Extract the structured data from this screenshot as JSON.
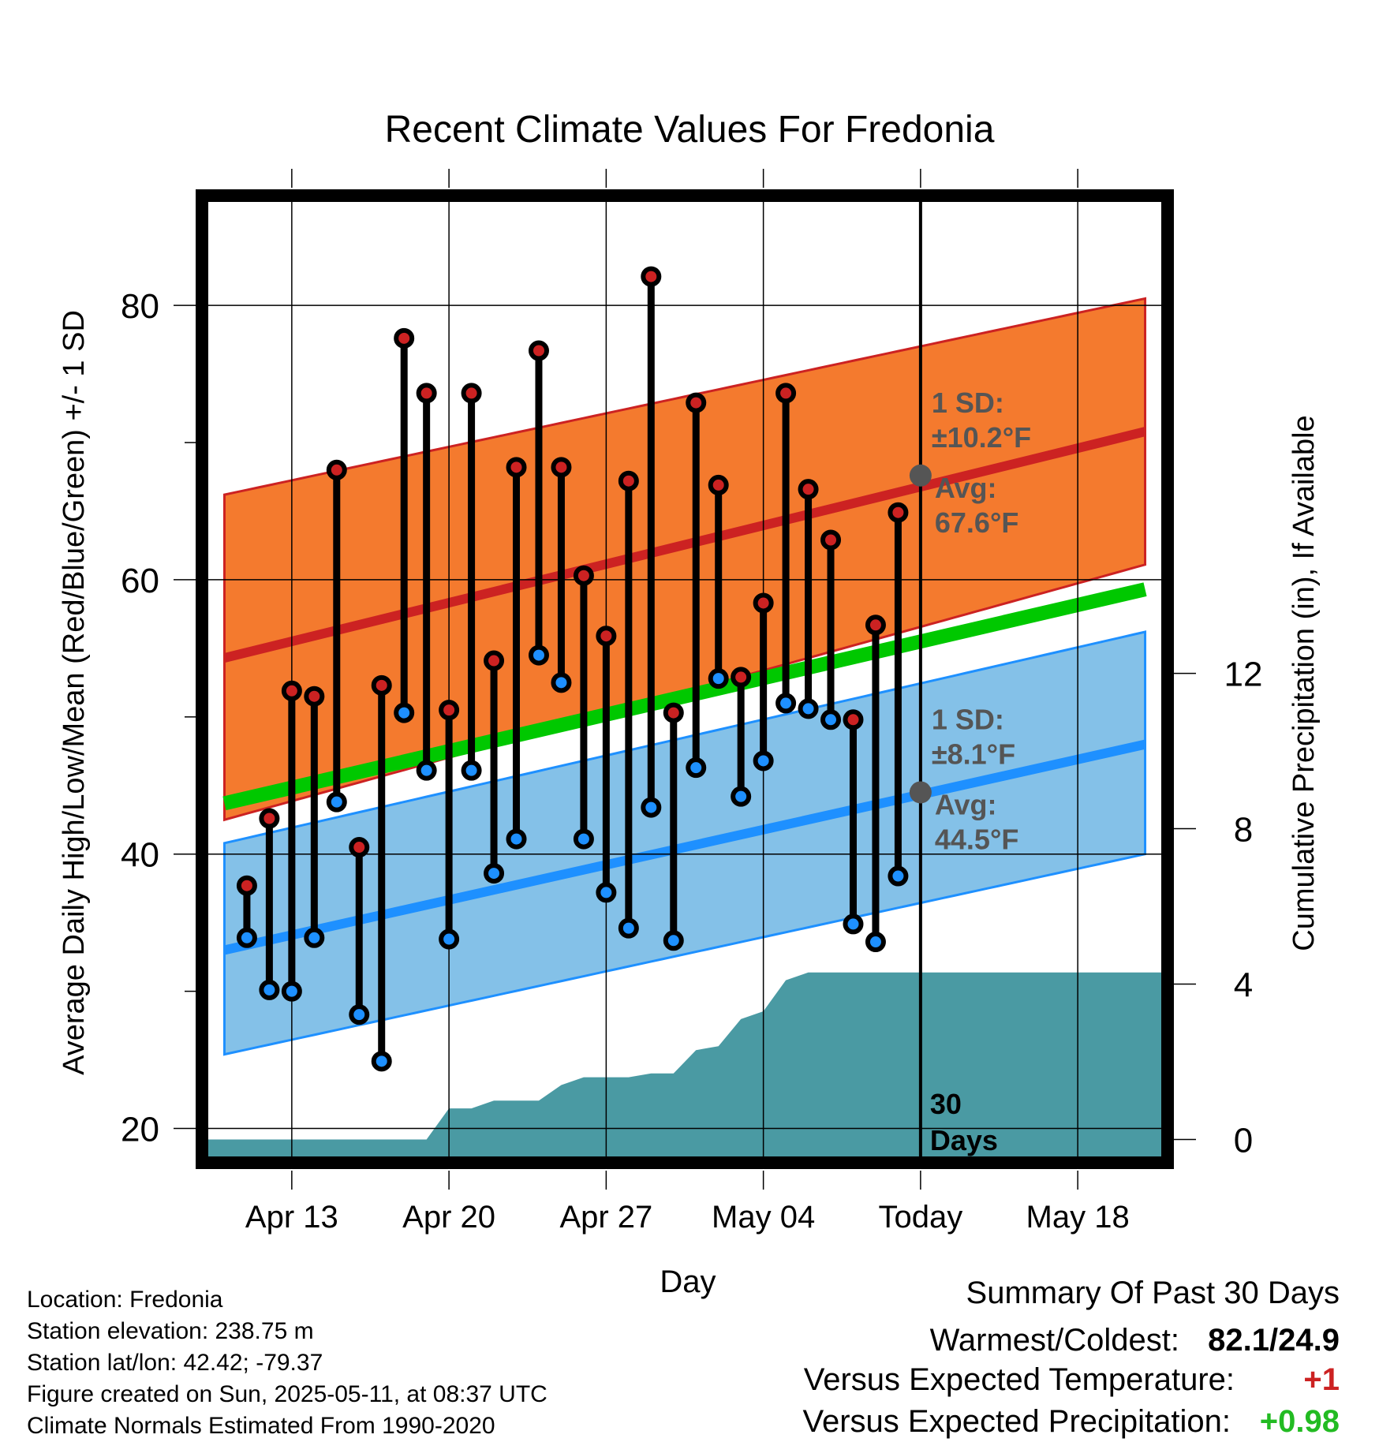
{
  "chart_data": {
    "type": "climate-range-plot",
    "title": "Recent Climate Values For Fredonia",
    "xlabel": "Day",
    "ylabel_left": "Average Daily High/Low/Mean (Red/Blue/Green) +/- 1 SD",
    "ylabel_right": "Cumulative Precipitation (in), If Available",
    "x_range_days": [
      -32,
      11
    ],
    "ylim_temp": [
      17.5,
      88
    ],
    "ylim_precip": [
      -0.6,
      24.3
    ],
    "x_ticks": [
      {
        "day": -28,
        "label": "Apr 13"
      },
      {
        "day": -21,
        "label": "Apr 20"
      },
      {
        "day": -14,
        "label": "Apr 27"
      },
      {
        "day": -7,
        "label": "May 04"
      },
      {
        "day": 0,
        "label": "Today"
      },
      {
        "day": 7,
        "label": "May 18"
      }
    ],
    "y_ticks_temp": [
      20,
      40,
      60,
      80
    ],
    "y_minor_ticks_temp": [
      30,
      50,
      70
    ],
    "y_ticks_precip": [
      0,
      4,
      8,
      12
    ],
    "high_normal": {
      "days": [
        -31,
        10
      ],
      "mean": [
        54.3,
        70.8
      ],
      "upper": [
        66.2,
        80.5
      ],
      "lower": [
        42.5,
        61.1
      ]
    },
    "low_normal": {
      "days": [
        -31,
        10
      ],
      "mean": [
        33.0,
        48.0
      ],
      "upper": [
        40.8,
        56.2
      ],
      "lower": [
        25.4,
        40.0
      ]
    },
    "mean_normal": {
      "days": [
        -31,
        10
      ],
      "values": [
        43.7,
        59.3
      ]
    },
    "daily": {
      "days": [
        -30,
        -29,
        -28,
        -27,
        -26,
        -25,
        -24,
        -23,
        -22,
        -21,
        -20,
        -19,
        -18,
        -17,
        -16,
        -15,
        -14,
        -13,
        -12,
        -11,
        -10,
        -9,
        -8,
        -7,
        -6,
        -5,
        -4,
        -3,
        -2,
        -1
      ],
      "highs": [
        37.7,
        42.6,
        51.9,
        51.5,
        68.0,
        40.5,
        52.3,
        77.6,
        73.6,
        50.5,
        73.6,
        54.1,
        68.2,
        76.7,
        68.2,
        60.3,
        55.9,
        67.2,
        82.1,
        50.3,
        72.9,
        66.9,
        52.9,
        58.3,
        73.6,
        66.6,
        62.9,
        49.8,
        56.7,
        64.9
      ],
      "lows": [
        33.9,
        30.1,
        30.0,
        33.9,
        43.8,
        28.3,
        24.9,
        50.3,
        46.1,
        33.8,
        46.1,
        38.6,
        41.1,
        54.5,
        52.5,
        41.1,
        37.2,
        34.6,
        43.4,
        33.7,
        46.3,
        52.8,
        44.2,
        46.8,
        51.0,
        50.6,
        49.8,
        34.9,
        33.6,
        38.4
      ]
    },
    "precip_cumulative": {
      "days": [
        -32,
        -30,
        -27,
        -26,
        -25,
        -24,
        -23,
        -22,
        -21,
        -20,
        -19,
        -18,
        -17,
        -16,
        -15,
        -14,
        -13,
        -12,
        -11,
        -10,
        -9,
        -8,
        -7,
        -6,
        -5,
        -4,
        0,
        11
      ],
      "values": [
        0,
        0,
        0,
        0,
        0,
        0,
        0,
        0,
        0.8,
        0.8,
        1.0,
        1.0,
        1.0,
        1.4,
        1.6,
        1.6,
        1.6,
        1.7,
        1.7,
        2.3,
        2.4,
        3.1,
        3.3,
        4.1,
        4.3,
        4.3,
        4.3,
        4.3
      ]
    },
    "today_marker": {
      "day": 0,
      "label_line1": "30",
      "label_line2": "Days"
    },
    "high_annotation": {
      "sd_label": "1 SD:",
      "sd_value": "±10.2°F",
      "avg_label": "Avg:",
      "avg_value": 67.6,
      "avg_text": "67.6°F"
    },
    "low_annotation": {
      "sd_label": "1 SD:",
      "sd_value": "±8.1°F",
      "avg_label": "Avg:",
      "avg_value": 44.5,
      "avg_text": "44.5°F"
    }
  },
  "colors": {
    "high_band": "#f47a2e",
    "high_mean": "#cc2222",
    "low_band": "#84c1e8",
    "low_mean": "#1e90ff",
    "mean_line": "#00c800",
    "precip_fill": "#4a9aa3",
    "high_dot": "#cc2222",
    "low_dot": "#1e90ff",
    "annotation": "#555555",
    "temp_anomaly": "#cc2222",
    "precip_anomaly": "#22bb22"
  },
  "info": {
    "location": "Location: Fredonia",
    "elevation": "Station elevation: 238.75 m",
    "latlon": "Station lat/lon: 42.42; -79.37",
    "created": "Figure created on Sun, 2025-05-11, at 08:37 UTC",
    "normals": "Climate Normals Estimated From 1990-2020"
  },
  "summary": {
    "title": "Summary Of Past 30 Days",
    "warm_cold_label": "Warmest/Coldest:",
    "warm_cold_value": "82.1/24.9",
    "temp_label": "Versus Expected Temperature:",
    "temp_value": "+1",
    "precip_label": "Versus Expected Precipitation:",
    "precip_value": "+0.98"
  }
}
